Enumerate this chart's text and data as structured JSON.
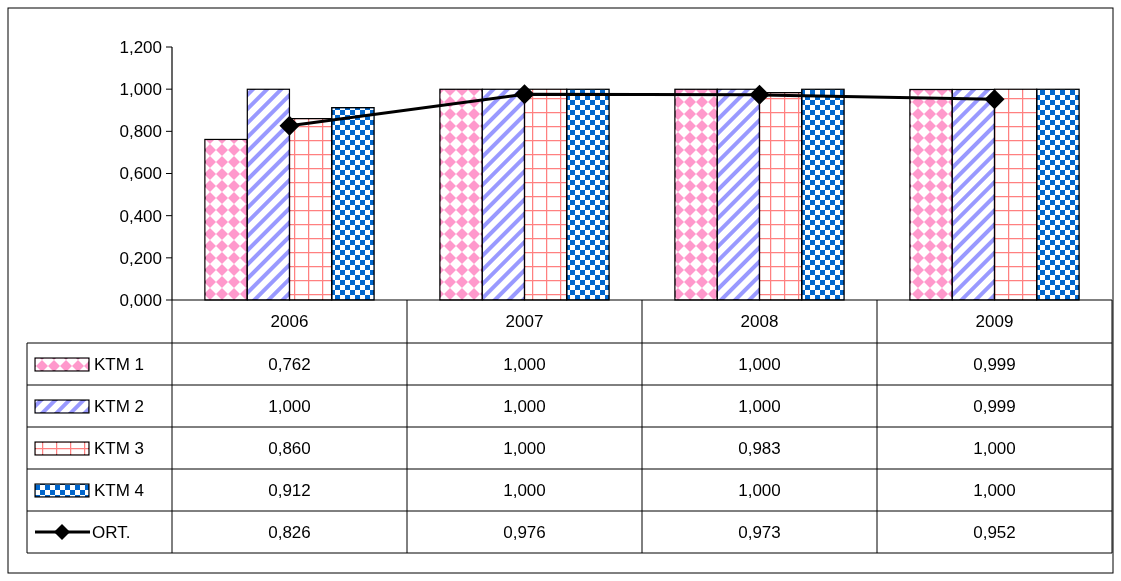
{
  "chart_data": {
    "type": "bar",
    "categories": [
      "2006",
      "2007",
      "2008",
      "2009"
    ],
    "ylim": [
      0,
      1.2
    ],
    "yticks": [
      {
        "value": 0,
        "label": "0,000"
      },
      {
        "value": 0.2,
        "label": "0,200"
      },
      {
        "value": 0.4,
        "label": "0,400"
      },
      {
        "value": 0.6,
        "label": "0,600"
      },
      {
        "value": 0.8,
        "label": "0,800"
      },
      {
        "value": 1,
        "label": "1,000"
      },
      {
        "value": 1.2,
        "label": "1,200"
      }
    ],
    "grid": false,
    "legend": "bottom",
    "series": [
      {
        "name": "KTM 1",
        "color": "#ff99cc",
        "values": [
          0.762,
          1,
          1,
          0.999
        ],
        "value_labels": [
          "0,762",
          "1,000",
          "1,000",
          "0,999"
        ]
      },
      {
        "name": "KTM 2",
        "color": "#9999ff",
        "values": [
          1,
          1,
          1,
          0.999
        ],
        "value_labels": [
          "1,000",
          "1,000",
          "1,000",
          "0,999"
        ]
      },
      {
        "name": "KTM 3",
        "color": "#ff8080",
        "values": [
          0.86,
          1,
          0.983,
          1
        ],
        "value_labels": [
          "0,860",
          "1,000",
          "0,983",
          "1,000"
        ]
      },
      {
        "name": "KTM 4",
        "color": "#0066cc",
        "values": [
          0.912,
          1,
          1,
          1
        ],
        "value_labels": [
          "0,912",
          "1,000",
          "1,000",
          "1,000"
        ]
      },
      {
        "name": "ORT.",
        "type": "line",
        "color": "#000000",
        "marker": "diamond",
        "line_style": "solid",
        "values": [
          0.826,
          0.976,
          0.973,
          0.952
        ],
        "value_labels": [
          "0,826",
          "0,976",
          "0,973",
          "0,952"
        ]
      }
    ]
  }
}
